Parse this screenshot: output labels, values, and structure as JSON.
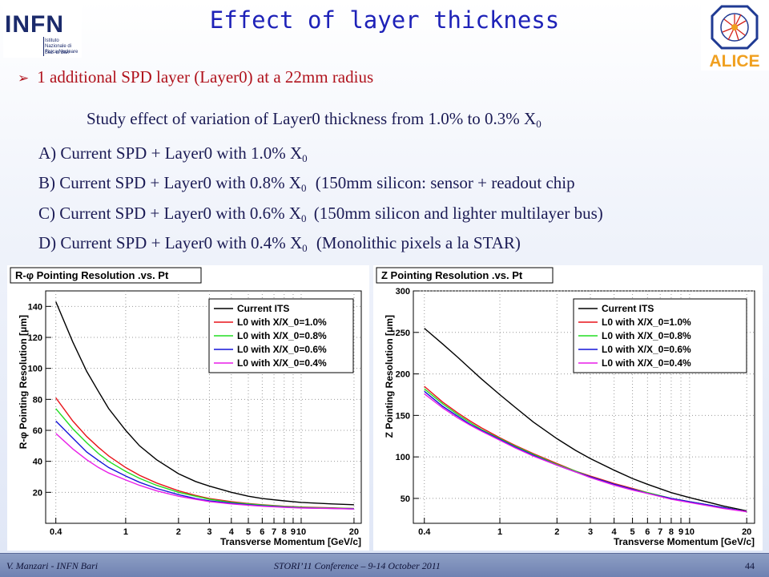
{
  "header": {
    "title": "Effect of layer thickness",
    "infn_logo": {
      "text": "INFN",
      "subtitle": "Istituto Nazionale di Fisica Nucleare",
      "section": "Sez. di Bari"
    },
    "alice_logo": {
      "text": "ALICE",
      "colors": {
        "blue": "#1f3a93",
        "red": "#d4231a",
        "orange": "#f0a020"
      }
    }
  },
  "bullet": "1 additional SPD layer (Layer0) at a 22mm radius",
  "study": {
    "prefix": "Study effect of variation of Layer0 thickness from 1.0% to 0.3% X",
    "sub": "0"
  },
  "options": [
    {
      "label": "A)",
      "text": "Current SPD + Layer0 with 1.0% X",
      "sub": "0",
      "note": ""
    },
    {
      "label": "B)",
      "text": "Current SPD + Layer0 with 0.8% X",
      "sub": "0",
      "note": "(150mm silicon: sensor + readout chip"
    },
    {
      "label": "C)",
      "text": "Current SPD + Layer0 with 0.6% X",
      "sub": "0",
      "note": "(150mm silicon and lighter multilayer bus)"
    },
    {
      "label": "D)",
      "text": "Current SPD + Layer0 with 0.4% X",
      "sub": "0",
      "note": "(Monolithic pixels a la STAR)"
    }
  ],
  "chart_data": [
    {
      "type": "line",
      "title": "R-φ Pointing Resolution .vs. Pt",
      "xlabel": "Transverse Momentum [GeV/c]",
      "ylabel": "R-φ Pointing Resolution [μm]",
      "xscale": "log",
      "xlim": [
        0.35,
        22
      ],
      "ylim": [
        0,
        150
      ],
      "xticks": [
        {
          "v": 0.4,
          "t": "0.4"
        },
        {
          "v": 1,
          "t": "1"
        },
        {
          "v": 2,
          "t": "2"
        },
        {
          "v": 3,
          "t": "3"
        },
        {
          "v": 4,
          "t": "4"
        },
        {
          "v": 5,
          "t": "5"
        },
        {
          "v": 6,
          "t": "6"
        },
        {
          "v": 7,
          "t": "7"
        },
        {
          "v": 8,
          "t": "8"
        },
        {
          "v": 9,
          "t": "9"
        },
        {
          "v": 10,
          "t": "10"
        },
        {
          "v": 20,
          "t": "20"
        }
      ],
      "yticks": [
        20,
        40,
        60,
        80,
        100,
        120,
        140
      ],
      "grid": true,
      "legend_position": "top-right",
      "x": [
        0.4,
        0.5,
        0.6,
        0.7,
        0.8,
        1,
        1.2,
        1.5,
        2,
        2.5,
        3,
        4,
        5,
        6,
        8,
        10,
        15,
        20
      ],
      "series": [
        {
          "name": "Current ITS",
          "color": "#000000",
          "values": [
            143,
            117,
            98,
            85,
            74,
            60,
            50,
            41,
            32,
            27,
            24,
            20,
            17.5,
            16,
            14.5,
            13.5,
            12.5,
            12
          ]
        },
        {
          "name": "L0 with X/X_0=1.0%",
          "color": "#e8141a",
          "values": [
            81,
            66,
            56,
            49,
            43.5,
            36,
            31,
            26,
            21,
            18,
            16,
            14,
            12.8,
            12,
            11,
            10.5,
            10,
            9.5
          ]
        },
        {
          "name": "L0 with X/X_0=0.8%",
          "color": "#22dd22",
          "values": [
            74,
            61,
            52,
            45,
            40,
            33.5,
            29,
            24.5,
            20,
            17.5,
            15.5,
            13.5,
            12.5,
            11.8,
            10.8,
            10.3,
            9.8,
            9.5
          ]
        },
        {
          "name": "L0 with X/X_0=0.6%",
          "color": "#1515d8",
          "values": [
            66,
            55,
            46,
            40.5,
            36,
            30.5,
            26.5,
            22.5,
            18.5,
            16,
            14.5,
            13,
            12,
            11.3,
            10.5,
            10,
            9.6,
            9.3
          ]
        },
        {
          "name": "L0 with X/X_0=0.4%",
          "color": "#e81de8",
          "values": [
            58,
            48,
            41,
            36,
            32.5,
            28,
            24.5,
            21,
            17.5,
            15.5,
            14,
            12.5,
            11.7,
            11,
            10.3,
            9.9,
            9.5,
            9.2
          ]
        }
      ]
    },
    {
      "type": "line",
      "title": "Z Pointing Resolution .vs. Pt",
      "xlabel": "Transverse Momentum [GeV/c]",
      "ylabel": "Z Pointing Resolution [μm]",
      "xscale": "log",
      "xlim": [
        0.35,
        22
      ],
      "ylim": [
        20,
        300
      ],
      "xticks": [
        {
          "v": 0.4,
          "t": "0.4"
        },
        {
          "v": 1,
          "t": "1"
        },
        {
          "v": 2,
          "t": "2"
        },
        {
          "v": 3,
          "t": "3"
        },
        {
          "v": 4,
          "t": "4"
        },
        {
          "v": 5,
          "t": "5"
        },
        {
          "v": 6,
          "t": "6"
        },
        {
          "v": 7,
          "t": "7"
        },
        {
          "v": 8,
          "t": "8"
        },
        {
          "v": 9,
          "t": "9"
        },
        {
          "v": 10,
          "t": "10"
        },
        {
          "v": 20,
          "t": "20"
        }
      ],
      "yticks": [
        50,
        100,
        150,
        200,
        250,
        300
      ],
      "grid": true,
      "legend_position": "top-right",
      "x": [
        0.4,
        0.5,
        0.6,
        0.7,
        0.8,
        1,
        1.2,
        1.5,
        2,
        2.5,
        3,
        4,
        5,
        6,
        8,
        10,
        15,
        20
      ],
      "series": [
        {
          "name": "Current ITS",
          "color": "#000000",
          "values": [
            255,
            236,
            220,
            206,
            194,
            175,
            160,
            142,
            122,
            108,
            98,
            84,
            74,
            67,
            57,
            51,
            41,
            35
          ]
        },
        {
          "name": "L0 with X/X_0=1.0%",
          "color": "#e8141a",
          "values": [
            185,
            166,
            153,
            143,
            135,
            123,
            114,
            104,
            92,
            83,
            77,
            68,
            62,
            57,
            50,
            46,
            39,
            34
          ]
        },
        {
          "name": "L0 with X/X_0=0.8%",
          "color": "#22dd22",
          "values": [
            182,
            164,
            151,
            141,
            133,
            122,
            113,
            103,
            91,
            83,
            76,
            67,
            61,
            57,
            50,
            46,
            39,
            34
          ]
        },
        {
          "name": "L0 with X/X_0=0.6%",
          "color": "#1515d8",
          "values": [
            179,
            161,
            149,
            139,
            132,
            121,
            112,
            102,
            90,
            82,
            76,
            67,
            61,
            56,
            50,
            46,
            39,
            34
          ]
        },
        {
          "name": "L0 with X/X_0=0.4%",
          "color": "#e81de8",
          "values": [
            176,
            159,
            147,
            138,
            131,
            120,
            111,
            101,
            90,
            82,
            75,
            66,
            60,
            56,
            49,
            45,
            38,
            34
          ]
        }
      ]
    }
  ],
  "footer": {
    "author": "V. Manzari - INFN Bari",
    "conference": "STORI’11 Conference – 9-14 October 2011",
    "page": "44"
  }
}
